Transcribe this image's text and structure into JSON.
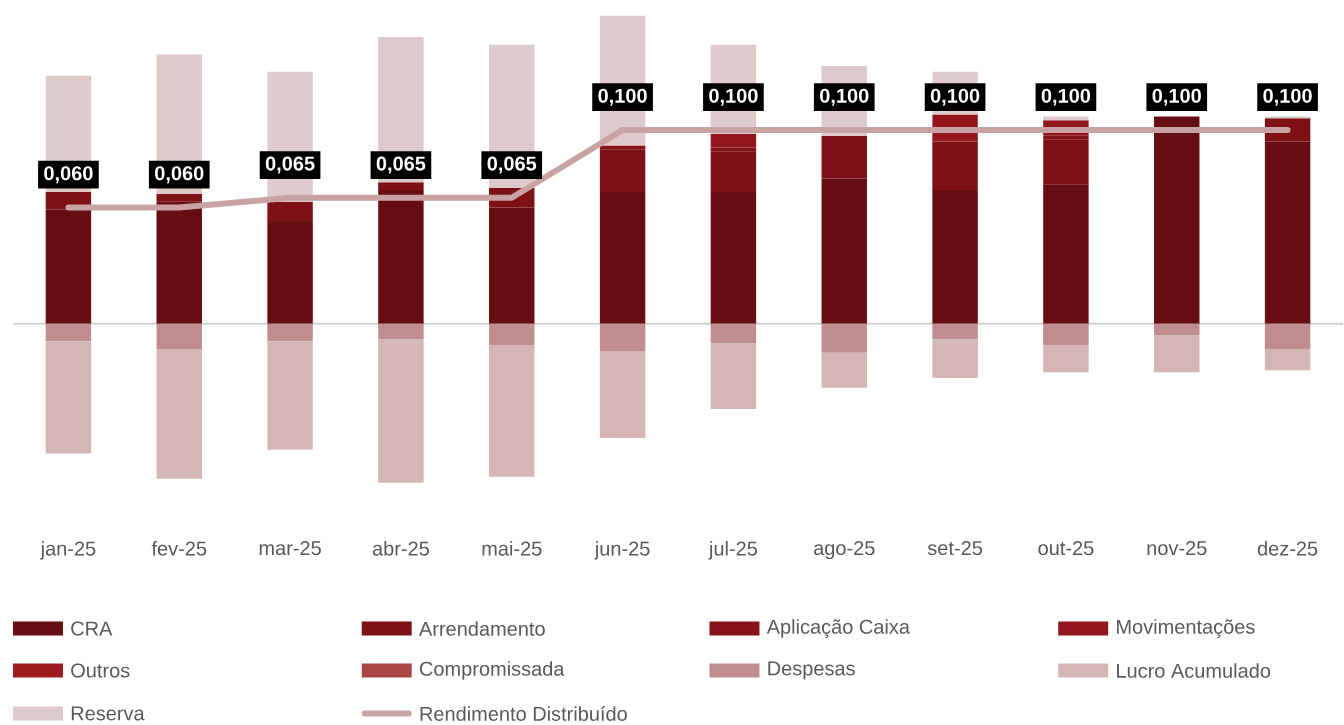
{
  "chart_data": {
    "type": "bar",
    "stacked": true,
    "legend": "bottom",
    "categories": [
      "jan-25",
      "fev-25",
      "mar-25",
      "abr-25",
      "mai-25",
      "jun-25",
      "jul-25",
      "ago-25",
      "set-25",
      "out-25",
      "nov-25",
      "dez-25"
    ],
    "series": [
      {
        "name": "CRA",
        "color": "#650d10",
        "values": [
          0.059,
          0.063,
          0.053,
          0.069,
          0.06,
          0.068,
          0.068,
          0.075,
          0.069,
          0.072,
          0.107,
          0.094
        ]
      },
      {
        "name": "Arrendamento",
        "color": "#7d1115",
        "values": [
          0.009,
          0.004,
          0.01,
          0.004,
          0.01,
          0.022,
          0.021,
          0.022,
          0.025,
          0.023,
          null,
          0.012
        ]
      },
      {
        "name": "Aplicação Caixa",
        "color": "#86131a",
        "values": [
          null,
          null,
          null,
          null,
          null,
          0.002,
          0.002,
          null,
          null,
          0.002,
          null,
          null
        ]
      },
      {
        "name": "Movimentações",
        "color": "#93161c",
        "values": [
          null,
          null,
          null,
          null,
          null,
          null,
          0.007,
          null,
          0.014,
          0.008,
          null,
          null
        ]
      },
      {
        "name": "Outros",
        "color": "#9e1b20",
        "values": [
          null,
          null,
          null,
          null,
          null,
          null,
          null,
          null,
          null,
          null,
          null,
          null
        ]
      },
      {
        "name": "Compromissada",
        "color": "#a84545",
        "values": [
          null,
          null,
          null,
          null,
          null,
          null,
          null,
          null,
          null,
          null,
          null,
          null
        ]
      },
      {
        "name": "Despesas",
        "color": "#bf8d8d",
        "values": [
          -0.009,
          -0.013,
          -0.009,
          -0.008,
          -0.011,
          -0.014,
          -0.01,
          -0.015,
          -0.008,
          -0.011,
          -0.006,
          -0.013
        ]
      },
      {
        "name": "Lucro Acumulado",
        "color": "#d4b6b6",
        "values": [
          -0.058,
          -0.067,
          -0.056,
          -0.074,
          -0.068,
          -0.045,
          -0.034,
          -0.018,
          -0.02,
          -0.014,
          -0.019,
          -0.011
        ]
      },
      {
        "name": "Reserva",
        "color": "#decacb",
        "values": [
          0.06,
          0.072,
          0.067,
          0.075,
          0.074,
          0.067,
          0.046,
          0.036,
          0.022,
          0.002,
          null,
          0.001
        ]
      },
      {
        "name": "Rendimento Distribuído",
        "type": "line",
        "color": "#c9a3a4",
        "values": [
          0.06,
          0.06,
          0.065,
          0.065,
          0.065,
          0.1,
          0.1,
          0.1,
          0.1,
          0.1,
          0.1,
          0.1
        ],
        "value_labels": [
          "0,060",
          "0,060",
          "0,065",
          "0,065",
          "0,065",
          "0,100",
          "0,100",
          "0,100",
          "0,100",
          "0,100",
          "0,100",
          "0,100"
        ]
      }
    ]
  }
}
